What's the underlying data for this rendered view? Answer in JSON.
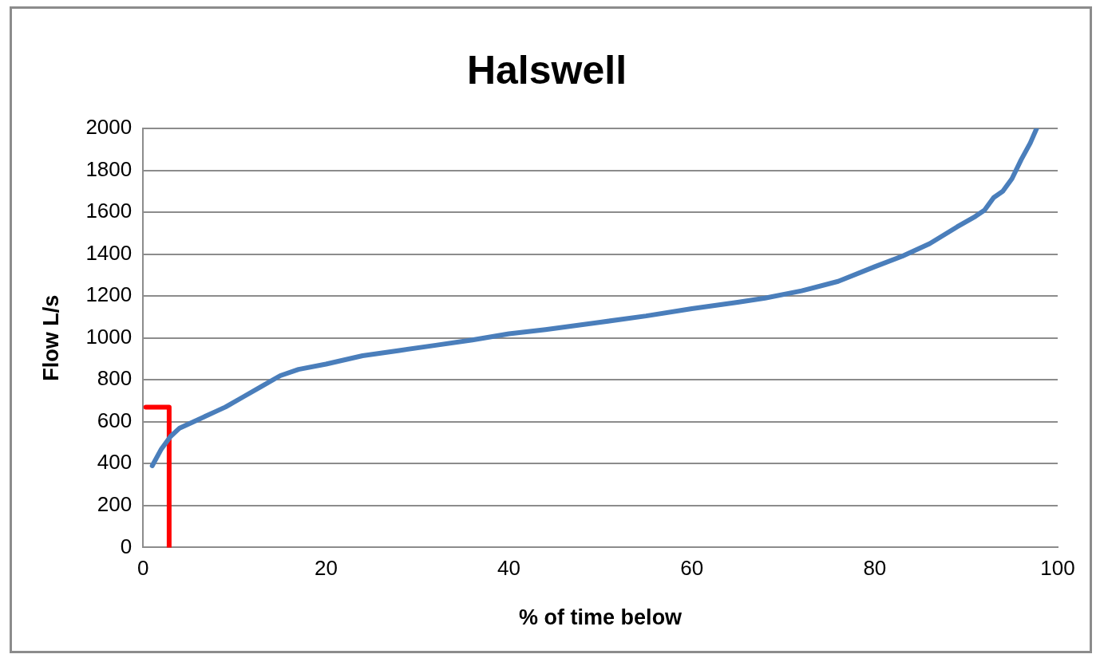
{
  "chart_data": {
    "type": "line",
    "title": "Halswell",
    "xlabel": "% of time below",
    "ylabel": "Flow L/s",
    "xlim": [
      0,
      100
    ],
    "xticks": [
      0,
      20,
      40,
      60,
      80,
      100
    ],
    "ylim": [
      0,
      2000
    ],
    "yticks": [
      0,
      200,
      400,
      600,
      800,
      1000,
      1200,
      1400,
      1600,
      1800,
      2000
    ],
    "grid": "y",
    "legend": false,
    "marker": "none",
    "line_style": "solid",
    "series": [
      {
        "color": "#4a7ebb",
        "x": [
          1,
          2,
          3,
          4,
          6,
          8,
          9,
          11,
          13,
          15,
          17,
          20,
          24,
          28,
          32,
          36,
          40,
          44,
          50,
          55,
          60,
          65,
          68,
          72,
          76,
          80,
          83,
          86,
          89,
          91,
          92,
          93,
          94,
          95,
          96,
          97,
          97.7
        ],
        "values": [
          390,
          470,
          530,
          570,
          610,
          650,
          670,
          720,
          770,
          820,
          850,
          875,
          915,
          940,
          965,
          990,
          1020,
          1040,
          1075,
          1105,
          1140,
          1170,
          1190,
          1225,
          1270,
          1340,
          1390,
          1450,
          1530,
          1580,
          1610,
          1670,
          1700,
          1760,
          1850,
          1930,
          2000
        ]
      },
      {
        "color": "#ff0000",
        "x": [
          0.3,
          2.85,
          2.85
        ],
        "values": [
          670,
          670,
          0
        ]
      }
    ]
  }
}
